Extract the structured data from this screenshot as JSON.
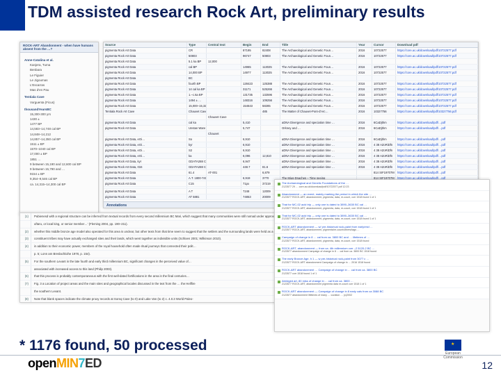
{
  "title": "TDM assisted research Rock Art, preliminary results",
  "footnote": "* 1176 found, 50 processed",
  "pageno": "12",
  "logo": {
    "p1": "open",
    "p2": "MIN",
    "p3": "7",
    "p4": "ED"
  },
  "eu": {
    "l1": "European",
    "l2": "Commission"
  },
  "tree": {
    "header": "ROCK-ART Abandonment - when have humans absent from the …?",
    "groups": [
      {
        "label": "Anne-Catalina et al.",
        "items": [
          "Kanjera, Tuma",
          "Benbara",
          "Le Figuier",
          "Le Jigoumas",
          "L'Escarras",
          "Mas d'en Pau"
        ]
      },
      {
        "label": "Tentiala Cave",
        "items": [
          "Vorguenta (Ficus)"
        ]
      },
      {
        "label": "thousandYearsBC",
        "items": [
          "15,300-300 yrs",
          "1430 ±",
          "1477 BP",
          "14,583–14,748 cal BP",
          "14,848–14,212",
          "14,857–14,350 cal BP",
          "1511 ± BP",
          "1570–1040 cal BP",
          "17,000 ± BP",
          "1851 …",
          "9 between 15,190 and 12,600 cal BP",
          "9 between 15,790 and …",
          "9154 ± BP",
          "9,354–9,546 cal BP",
          "ca. 14,315–14,300 cal BP"
        ]
      }
    ]
  },
  "table": {
    "cols": [
      "Source",
      "Type",
      "Central text",
      "Begin",
      "End",
      "Title",
      "Year",
      "Cursor",
      "Download pdf"
    ],
    "sections": [
      "",
      "CP",
      "Current"
    ],
    "rows": [
      [
        "pigmenta Rock Art Data",
        "CR",
        "",
        "87195",
        "82408",
        "The Archaeological and Genetic Foun…",
        "2016",
        "10722577",
        "https://core.ac.uk/download/pdf/10722577.pdf"
      ],
      [
        "pigmenta Rock Art Data",
        "50803",
        "",
        "96747",
        "50803",
        "The Archaeological and Genetic Foun…",
        "2016",
        "10722577",
        "https://core.ac.uk/download/pdf/10722577.pdf"
      ],
      [
        "pigmenta Rock Art Data",
        "5.1 ka BP",
        "12,000",
        "",
        "",
        "",
        "",
        "",
        ""
      ],
      [
        "pigmenta Rock Art Data",
        "cal BP",
        "",
        "14965",
        "113025",
        "The Archaeological and Genetic Foun…",
        "2016",
        "10722577",
        "https://core.ac.uk/download/pdf/10722577.pdf"
      ],
      [
        "pigmenta Rock Art Data",
        "14,000 BP",
        "",
        "14977",
        "113025",
        "The Archaeological and Genetic Foun…",
        "2016",
        "10722577",
        "https://core.ac.uk/download/pdf/10722577.pdf"
      ],
      [
        "pigmenta Rock Art Data",
        "BC",
        "",
        "",
        "",
        "",
        "",
        "",
        ""
      ],
      [
        "pigmenta Rock Art Data",
        "fourth BP",
        "",
        "128423",
        "125388",
        "The Archaeological and Genetic Foun…",
        "2016",
        "10722577",
        "https://core.ac.uk/download/pdf/10722577.pdf"
      ],
      [
        "pigmenta Rock Art Data",
        "14 cal ka BP",
        "",
        "31171",
        "525266",
        "The Archaeological and Genetic Foun…",
        "2016",
        "10722577",
        "https://core.ac.uk/download/pdf/10722577.pdf"
      ],
      [
        "pigmenta Rock Art Data",
        "1.–c.6a BP",
        "",
        "131735",
        "132596",
        "The Archaeological and Genetic Foun…",
        "2016",
        "10722577",
        "https://core.ac.uk/download/pdf/10722577.pdf"
      ],
      [
        "pigmenta Rock Art Data",
        "1494 ± …",
        "",
        "148316",
        "109256",
        "The Archaeological and Genetic Foun…",
        "2016",
        "10722577",
        "https://core.ac.uk/download/pdf/10722577.pdf"
      ],
      [
        "pigmenta Rock Art Data",
        "15,000–15,320 BP",
        "",
        "154643",
        "58285",
        "The Archaeological and Genetic Foun…",
        "2016",
        "10722577",
        "https://core.ac.uk/download/pdf/10722577.pdf"
      ],
      [
        "Tentiala Rock Art Cave",
        "Chauvet Cave",
        "",
        "",
        "485",
        "The Matter of Chauvet-Pont-d'Arc…",
        "2016",
        "10327756",
        "https://core.ac.uk/download/pdf/10327756.pdf"
      ],
      [
        "",
        "",
        "Chauvet Cave",
        "",
        "",
        "",
        "",
        "",
        ""
      ],
      [
        "pigmenta Rock Art Data",
        "cal ka",
        "",
        "5,410",
        "",
        "aDNA Divergence and speciation time …",
        "2016",
        "6CaDjthm",
        "https://core.ac.uk/download/pdf/…pdf"
      ],
      [
        "pigmenta Rock Art Data",
        "Unstan Ware",
        "",
        "5,747",
        "",
        "Orkney and …",
        "2016",
        "6CaDjthm",
        "https://core.ac.uk/download/pdf/…pdf"
      ],
      [
        "",
        "",
        "Chauvet",
        "",
        "",
        "",
        "",
        "",
        ""
      ],
      [
        "pigmenta Rock Art Data, eOi…",
        "So",
        "",
        "6,910",
        "",
        "aDNA Divergence and speciation time …",
        "2016",
        "6CaDjthm",
        "https://core.ac.uk/download/pdf/…pdf"
      ],
      [
        "pigmenta Rock Art Data, eOi…",
        "kyr",
        "",
        "6,910",
        "",
        "aDNA Divergence and speciation time …",
        "2016",
        "4 38 AZoRiDfn",
        "https://core.ac.uk/download/pdf/…pdf"
      ],
      [
        "pigmenta Rock Art Data, eOi…",
        "S2",
        "",
        "6,910",
        "",
        "aDNA Divergence and speciation time …",
        "2016",
        "4 38 AZoRiDfn",
        "https://core.ac.uk/download/pdf/…pdf"
      ],
      [
        "pigmenta Rock Art Data, eOi…",
        "ka",
        "",
        "6,096",
        "12,810",
        "aDNA Divergence and speciation time …",
        "2016",
        "4 38 AZoRiDfn",
        "https://core.ac.uk/download/pdf/…pdf"
      ],
      [
        "pigmenta Rock Art Data, kyr",
        "GDATA288 CHP – A",
        "",
        "6,947",
        "",
        "aDNA Divergence and speciation time …",
        "2016",
        "4 38 AZoRiDfn",
        "https://core.ac.uk/download/pdf/…pdf"
      ],
      [
        "pigmenta Rock Art Data, 034",
        "GDATA288 CHP – A 646",
        "",
        "448.7",
        "81.6",
        "aDNA Divergence and speciation time …",
        "2016",
        "4 38 AZoRiDfn",
        "https://core.ac.uk/download/pdf/…pdf"
      ],
      [
        "pigmenta Rock Art Data",
        "61.4",
        "AT-001",
        "",
        "6,879",
        "",
        "",
        "814 SIF19707M",
        "https://core.ac.uk/download/pdf/…pdf"
      ],
      [
        "pigmenta Rock Art Data",
        "A.T. 1800-7404",
        "",
        "6,919",
        "3770",
        "The Mius-Dnaches – Time seeing",
        "",
        "814 SIF19707M",
        "https://core.ac.uk/download/pdf/…pdf"
      ],
      [
        "pigmenta Rock Art Data",
        "C15",
        "",
        "71px",
        "37219",
        "The Mius-Dnaches – Time seeing",
        "",
        "814 SIF19707M",
        "https://core.ac.uk/download/pdf/…pdf"
      ],
      [
        "",
        "",
        "",
        "",
        "",
        "",
        "",
        "",
        ""
      ],
      [
        "pigmenta Rock Art Data",
        "A T",
        "",
        "7248",
        "12009",
        "The Mius-Dnaches – Time seeing",
        "",
        "2016 8270199707M",
        "pr… www.elta.org/a/download/pdf/…"
      ],
      [
        "pigmenta Rock Art Data",
        "AT 5881",
        "",
        "74853",
        "20009",
        "The Mius-Dnaches – Time seeing",
        "",
        "814 SIF19707M",
        "https://core.ac.uk/download/pdf/…"
      ]
    ]
  },
  "annotations": {
    "header": "Annotations",
    "rows": [
      {
        "n": "(1)",
        "t": "Pubienesd with a regional structure can be inferred from textual records from every second millennium BC Mari, which suggest that many communities were still nomad under approx…"
      },
      {
        "n": "",
        "t": "uftaru, or local king, or senior member…' (Fleming 2004, pp. 190–211)."
      },
      {
        "n": "(2)",
        "t": "whether this middle bronze age model also operated for this area is unclear, but other texts from that time seem to suggest that the settlers and the surrounding lands were held as a un…"
      },
      {
        "n": "(3)",
        "t": "constituent tribes may have actually exchanged sites and their lands, which went together as indivisible units (Schloen 2001; Wilkinson 2010)."
      },
      {
        "n": "(4)",
        "t": "in addition to their economic power, members of the royal household often made ritual journeys that connected their polit…"
      },
      {
        "n": "",
        "t": "p. 5; Lonn am Breslachloihe 1978, p. 154)."
      },
      {
        "n": "(5)",
        "t": "For the southern Levant in the late fourth and early third millennium BC, significant changes in the perceived value of…"
      },
      {
        "n": "",
        "t": "associated with increased access to this land (Philip 2003)."
      },
      {
        "n": "(6)",
        "t": "that this process is probably contemporaneous with the first well-dated fortifications in the area in the final centuries…"
      },
      {
        "n": "(7)",
        "t": "Fig. 3 a Location of project areas and the main sites and geographical locales discussed in the text from the … the Hellfire"
      },
      {
        "n": "",
        "t": "the southern Levant."
      },
      {
        "n": "(8)",
        "t": "Note that blank spaces indicate the climate proxy records at Soreq Cave (to 0) and Lake Van (to 2) c. 4.0.3 World Paleo-"
      },
      {
        "n": "",
        "t": "connections to the land framed in that way can lead us to discover new ways of extracting cultures from the historic"
      },
      {
        "n": "",
        "t": "permanent settlements were few."
      }
    ]
  },
  "detail": {
    "lines": [
      {
        "t": "The Archaeological and Genetic Foundations of the …",
        "m": "2123577  29  …  core.ac.uk/download/pdf/10722577.pdf  12:23"
      },
      {
        "t": "Abandonment — an event, mainly marking the period in which the site …",
        "m": "2123577  ROCK-ART, abandonment, pigmenta, data, re-count, corr  1518 found  1 of 1"
      },
      {
        "t": "That for MC-02 acid trip — only one is dated to 3890–3630 BC cal …",
        "m": "2123577  ROCK-ART, abandonment, pigmenta, data, re-count, corr  1518 found  1 of 1"
      },
      {
        "t": "That for MC-02 acid trip — only one is dated to 3890–3630 BC cal …",
        "m": "2123577  ROCK-ART, abandonment, pigmenta, data, re-count, corr  1518 found  1 of 1"
      },
      {
        "t": "ROCK-ART abandonment — w/ pre-historical rock-paint from early/mid …",
        "m": "2123577  ROCK-ART, abandonment, pigmenta/re-count/others/tags …"
      },
      {
        "t": "Campaign of change in 8 … cal from ca. 3800 BC and … lifetimes of …",
        "m": "2123577  ROCK-ART, abandonment, pigmenta, data, re-count, corr  1518 found"
      },
      {
        "t": "ROCK-ART, abandonment — from ca. 4th millennium corr –2 5120-2 BC …",
        "m": "2123577  abandonment  Campaign of change in 8 … cal from ca. 3800 BC  1518 found"
      },
      {
        "t": "The early Bronze Age, h 1 — w pre-historical rock-paint from 3077 c …",
        "m": "2123577  ROCK-ART  abandonment  Campaign of change in … 2016  1518 found"
      },
      {
        "t": "ROCK-ART abandonment … Campaign of change in … cal from ca. 3800 BC",
        "m": "2123577  corr  1518 found  1 of 1"
      },
      {
        "t": "Abridged art, 80 miss of change in … cal from ca. 3800 …",
        "m": "2123577  ROCK-ART, abandonment  pigmenta  data  re-count  corr  1518  1 of 1"
      },
      {
        "t": "ROCK-ART abandonment — Campaign of change in 8 early cals  from ca 3088 BC",
        "m": "2123577  abandonment  lifetimes of many …  curation … (c)2002"
      }
    ]
  }
}
